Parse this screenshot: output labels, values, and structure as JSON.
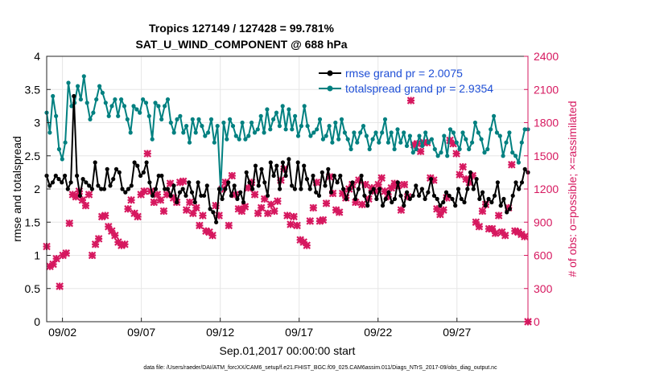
{
  "chart_data": {
    "type": "line",
    "title_line1": "Tropics 127149 / 127428 = 99.781%",
    "title_line2": "SAT_U_WIND_COMPONENT @ 688 hPa",
    "xlabel": "Sep.01,2017 00:00:00 start",
    "ylabel_left": "rmse and totalspread",
    "ylabel_right": "# of obs: o=possible; ×=assimilated",
    "footer": "data file: /Users/raeder/DAI/ATM_forcXX/CAM6_setup/f.e21.FHIST_BGC.f09_025.CAM6assim.011/Diags_NTrS_2017-09/obs_diag_output.nc",
    "xlim": [
      1,
      31.5
    ],
    "ylim_left": [
      0,
      4
    ],
    "ylim_right": [
      0,
      2400
    ],
    "xticks": [
      {
        "value": 2,
        "label": "09/02"
      },
      {
        "value": 7,
        "label": "09/07"
      },
      {
        "value": 12,
        "label": "09/12"
      },
      {
        "value": 17,
        "label": "09/17"
      },
      {
        "value": 22,
        "label": "09/22"
      },
      {
        "value": 27,
        "label": "09/27"
      }
    ],
    "yticks_left": [
      "0",
      "0.5",
      "1",
      "1.5",
      "2",
      "2.5",
      "3",
      "3.5",
      "4"
    ],
    "yticks_right": [
      "0",
      "300",
      "600",
      "900",
      "1200",
      "1500",
      "1800",
      "2100",
      "2400"
    ],
    "legend": [
      {
        "label": "rmse grand pr = 2.0075",
        "color": "#000000"
      },
      {
        "label": "totalspread grand pr = 2.9354",
        "color": "#008080"
      }
    ],
    "series": [
      {
        "name": "rmse",
        "color": "#000000",
        "axis": "left",
        "values": [
          2.2,
          2.05,
          2.1,
          2.2,
          2.15,
          2.1,
          2.2,
          2.0,
          2.1,
          3.4,
          2.2,
          1.9,
          2.15,
          2.1,
          2.05,
          2.0,
          2.4,
          2.05,
          2.0,
          2.0,
          2.3,
          2.05,
          2.15,
          2.3,
          2.25,
          2.0,
          1.95,
          2.0,
          2.05,
          2.4,
          2.35,
          2.2,
          2.25,
          2.4,
          2.1,
          1.9,
          2.0,
          2.2,
          2.2,
          2.0,
          2.0,
          1.9,
          2.05,
          1.8,
          1.95,
          2.0,
          1.9,
          2.1,
          1.95,
          1.8,
          2.1,
          1.9,
          1.9,
          2.05,
          1.7,
          1.65,
          1.5,
          2.0,
          1.85,
          2.0,
          2.1,
          1.9,
          2.05,
          1.85,
          1.95,
          1.8,
          2.25,
          2.1,
          2.0,
          2.35,
          2.05,
          2.3,
          2.1,
          1.9,
          2.4,
          2.2,
          2.35,
          2.0,
          2.4,
          2.2,
          2.45,
          2.05,
          2.0,
          2.4,
          2.0,
          2.35,
          2.15,
          2.0,
          2.2,
          1.95,
          1.9,
          2.25,
          2.05,
          2.3,
          1.95,
          2.2,
          2.1,
          2.2,
          2.0,
          1.85,
          2.0,
          2.1,
          1.85,
          2.0,
          2.2,
          1.9,
          1.75,
          1.95,
          2.0,
          1.85,
          2.0,
          1.75,
          1.85,
          1.95,
          1.8,
          1.85,
          2.1,
          1.9,
          1.75,
          1.95,
          1.85,
          1.9,
          2.05,
          1.9,
          2.0,
          1.85,
          1.95,
          2.15,
          1.9,
          1.85,
          1.75,
          1.8,
          1.95,
          1.9,
          1.85,
          1.75,
          2.0,
          1.85,
          1.8,
          2.0,
          2.25,
          2.0,
          2.15,
          1.85,
          1.95,
          1.75,
          1.85,
          1.8,
          1.9,
          2.1,
          1.75,
          1.85,
          1.65,
          1.7,
          1.9,
          2.1,
          2.0,
          2.1,
          2.3,
          2.25
        ]
      },
      {
        "name": "totalspread",
        "color": "#008080",
        "axis": "left",
        "values": [
          3.15,
          2.85,
          3.4,
          3.1,
          2.6,
          2.45,
          2.7,
          3.6,
          3.25,
          3.3,
          3.55,
          3.35,
          3.7,
          3.3,
          3.05,
          3.15,
          3.35,
          3.55,
          3.45,
          3.3,
          3.1,
          3.25,
          3.35,
          3.1,
          3.35,
          3.25,
          3.05,
          2.85,
          3.25,
          3.2,
          3.15,
          3.35,
          3.3,
          3.1,
          2.75,
          3.3,
          3.25,
          3.05,
          3.25,
          3.35,
          3.0,
          2.85,
          3.05,
          3.1,
          2.85,
          2.95,
          2.7,
          3.05,
          2.85,
          3.05,
          2.95,
          2.8,
          2.85,
          3.05,
          2.7,
          2.95,
          2.0,
          3.0,
          2.75,
          3.05,
          2.95,
          2.8,
          2.75,
          3.0,
          2.75,
          2.8,
          3.0,
          2.85,
          2.9,
          3.1,
          2.85,
          3.2,
          2.9,
          3.05,
          3.15,
          2.95,
          3.25,
          2.9,
          3.2,
          2.9,
          3.1,
          2.8,
          2.95,
          3.25,
          2.95,
          2.8,
          2.85,
          2.9,
          3.05,
          2.75,
          2.8,
          2.95,
          2.7,
          3.0,
          2.75,
          3.05,
          2.85,
          2.75,
          2.6,
          2.85,
          2.7,
          2.85,
          2.95,
          2.8,
          2.6,
          2.75,
          2.85,
          2.7,
          2.85,
          3.05,
          2.7,
          2.85,
          2.6,
          2.9,
          2.7,
          2.85,
          2.65,
          2.8,
          2.55,
          2.6,
          2.8,
          2.65,
          2.85,
          2.7,
          2.75,
          2.6,
          2.5,
          2.55,
          2.8,
          2.5,
          2.9,
          2.85,
          2.7,
          2.6,
          2.85,
          2.75,
          2.6,
          2.7,
          3.0,
          2.85,
          2.75,
          2.55,
          2.6,
          2.9,
          3.1,
          2.85,
          2.8,
          2.5,
          2.7,
          2.85,
          2.55,
          2.5,
          2.4,
          2.7,
          2.9,
          2.9
        ]
      },
      {
        "name": "obs",
        "color": "#d6185f",
        "axis": "right",
        "values": [
          680,
          500,
          520,
          570,
          320,
          600,
          620,
          890,
          1150,
          1130,
          1180,
          1100,
          1050,
          1150,
          600,
          700,
          750,
          950,
          960,
          860,
          820,
          780,
          720,
          690,
          700,
          1020,
          1100,
          980,
          950,
          1150,
          1180,
          1520,
          1180,
          1080,
          1150,
          1100,
          1000,
          1150,
          1250,
          1120,
          1080,
          1260,
          1270,
          1010,
          1080,
          980,
          1030,
          870,
          960,
          820,
          810,
          780,
          1050,
          960,
          1200,
          1260,
          870,
          1320,
          1150,
          1020,
          1000,
          1040,
          1210,
          1260,
          1150,
          980,
          1030,
          1110,
          980,
          1060,
          1000,
          1090,
          1280,
          1380,
          960,
          880,
          950,
          870,
          740,
          720,
          690,
          910,
          1030,
          1260,
          910,
          920,
          1070,
          1310,
          1160,
          1010,
          990,
          1160,
          1120,
          1200,
          1240,
          1080,
          1280,
          1060,
          1240,
          1110,
          1210,
          1180,
          1240,
          1300,
          1180,
          1130,
          1210,
          1250,
          1230,
          1010,
          1240,
          1130,
          2000,
          1600,
          1610,
          1540,
          1620,
          1620,
          1300,
          1280,
          1020,
          970,
          1010,
          1120,
          1640,
          1610,
          1520,
          1330,
          1400,
          1290,
          1260,
          1320,
          900,
          860,
          1000,
          1060,
          840,
          840,
          800,
          960,
          810,
          780,
          1030,
          1420,
          820,
          810,
          790,
          770,
          0
        ]
      }
    ]
  }
}
